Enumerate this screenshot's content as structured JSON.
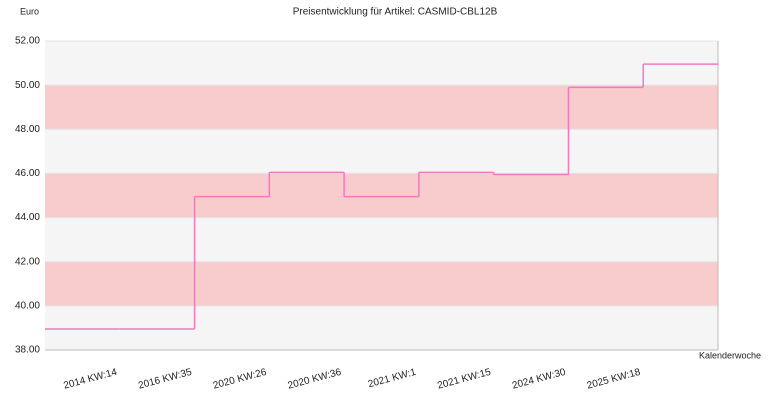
{
  "chart_data": {
    "type": "step",
    "title": "Preisentwicklung für Artikel: CASMID-CBL12B",
    "y_label": "Euro",
    "x_label": "Kalenderwoche",
    "categories": [
      null,
      "2014 KW:14",
      "2016 KW:35",
      "2020 KW:26",
      "2020 KW:36",
      "2021 KW:1",
      "2021 KW:15",
      "2024 KW:30",
      "2025 KW:18"
    ],
    "values": [
      38.95,
      38.95,
      44.95,
      46.05,
      44.95,
      46.05,
      45.95,
      49.9,
      50.95
    ],
    "color": "#f07ac0",
    "band_colors": [
      "#f5f5f5",
      "#f8cccc"
    ],
    "ylim": [
      38,
      52
    ],
    "yticks": [
      {
        "value": 38,
        "label": "38.00"
      },
      {
        "value": 40,
        "label": "40.00"
      },
      {
        "value": 42,
        "label": "42.00"
      },
      {
        "value": 44,
        "label": "44.00"
      },
      {
        "value": 46,
        "label": "46.00"
      },
      {
        "value": 48,
        "label": "48.00"
      },
      {
        "value": 50,
        "label": "50.00"
      },
      {
        "value": 52,
        "label": "52.00"
      }
    ],
    "grid": true
  }
}
